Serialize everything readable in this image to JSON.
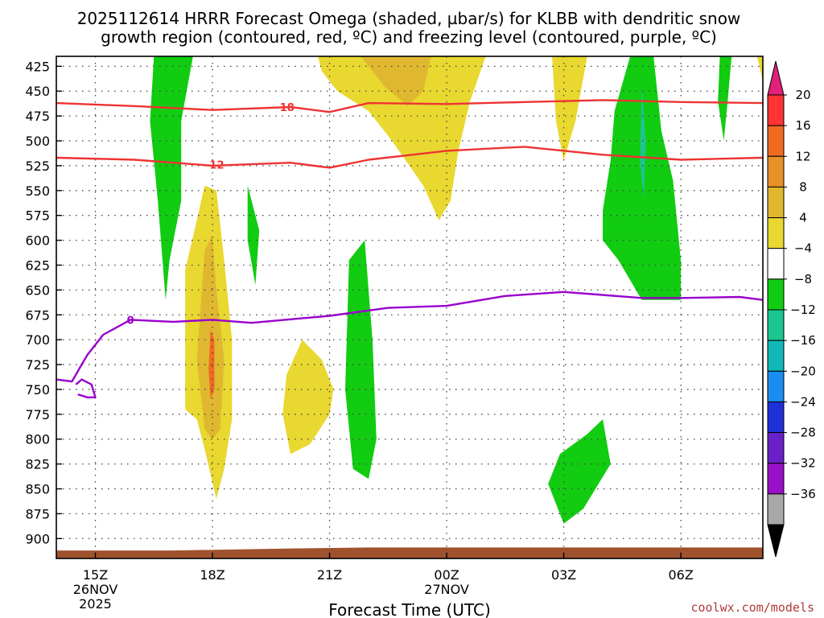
{
  "title_line1": "2025112614 HRRR Forecast Omega (shaded, µbar/s) for KLBB with dendritic snow",
  "title_line2": "growth region (contoured, red, ºC) and freezing level (contoured, purple, ºC)",
  "x_axis_label": "Forecast Time (UTC)",
  "credit": "coolwx.com/models",
  "colors": {
    "red_contour": "#ee3333",
    "purple_contour": "#9900cc",
    "terrain": "#a0522d"
  },
  "chart_data": {
    "type": "heatmap",
    "x_unit": "forecast hour from 14Z 26NOV2025",
    "xlim": [
      0,
      18.1
    ],
    "ylim_hpa": [
      415,
      920
    ],
    "y_ticks": [
      "425",
      "450",
      "475",
      "500",
      "525",
      "550",
      "575",
      "600",
      "625",
      "650",
      "675",
      "700",
      "725",
      "750",
      "775",
      "800",
      "825",
      "850",
      "875",
      "900"
    ],
    "x_ticks": [
      {
        "hour": 1,
        "label": "15Z",
        "sub1": "26NOV",
        "sub2": "2025"
      },
      {
        "hour": 4,
        "label": "18Z",
        "sub1": "",
        "sub2": ""
      },
      {
        "hour": 7,
        "label": "21Z",
        "sub1": "",
        "sub2": ""
      },
      {
        "hour": 10,
        "label": "00Z",
        "sub1": "27NOV",
        "sub2": ""
      },
      {
        "hour": 13,
        "label": "03Z",
        "sub1": "",
        "sub2": ""
      },
      {
        "hour": 16,
        "label": "06Z",
        "sub1": "",
        "sub2": ""
      }
    ],
    "colorbar": {
      "levels": [
        "20",
        "16",
        "12",
        "8",
        "4",
        "−4",
        "−8",
        "−12",
        "−16",
        "−20",
        "−24",
        "−28",
        "−32",
        "−36"
      ],
      "colors": [
        "#ff3333",
        "#f06a22",
        "#e89028",
        "#e0b830",
        "#e8d830",
        "#ffffff",
        "#11cc11",
        "#1dc590",
        "#12b8b8",
        "#1a8ef0",
        "#2030d8",
        "#6a20c8",
        "#9a10c8",
        "#a8a8a8"
      ],
      "top_arrow": "#e0207a",
      "bottom_arrow": "#000000"
    },
    "omega_regions": [
      {
        "value": -6,
        "color": "#11cc11",
        "points": [
          [
            2.5,
            415
          ],
          [
            3.5,
            415
          ],
          [
            3.2,
            480
          ],
          [
            3.2,
            560
          ],
          [
            2.9,
            620
          ],
          [
            2.8,
            660
          ],
          [
            2.6,
            560
          ],
          [
            2.4,
            480
          ]
        ]
      },
      {
        "value": -6,
        "color": "#11cc11",
        "points": [
          [
            4.9,
            545
          ],
          [
            5.2,
            590
          ],
          [
            5.1,
            645
          ],
          [
            4.9,
            600
          ]
        ]
      },
      {
        "value": -6,
        "color": "#11cc11",
        "points": [
          [
            7.5,
            620
          ],
          [
            7.9,
            600
          ],
          [
            8.1,
            700
          ],
          [
            8.2,
            800
          ],
          [
            8.0,
            840
          ],
          [
            7.6,
            830
          ],
          [
            7.4,
            750
          ]
        ]
      },
      {
        "value": -6,
        "color": "#11cc11",
        "points": [
          [
            12.6,
            845
          ],
          [
            12.9,
            815
          ],
          [
            13.6,
            795
          ],
          [
            14.0,
            780
          ],
          [
            14.2,
            825
          ],
          [
            13.5,
            870
          ],
          [
            13.0,
            885
          ]
        ]
      },
      {
        "value": -6,
        "color": "#11cc11",
        "points": [
          [
            14.7,
            415
          ],
          [
            15.3,
            415
          ],
          [
            15.5,
            490
          ],
          [
            15.8,
            540
          ],
          [
            16.0,
            620
          ],
          [
            16.0,
            660
          ],
          [
            15.0,
            660
          ],
          [
            14.4,
            620
          ],
          [
            14.0,
            600
          ],
          [
            14.0,
            570
          ],
          [
            14.2,
            520
          ],
          [
            14.3,
            470
          ]
        ]
      },
      {
        "value": -10,
        "color": "#1dc590",
        "points": [
          [
            15.0,
            445
          ],
          [
            15.1,
            500
          ],
          [
            15.05,
            560
          ],
          [
            14.95,
            520
          ]
        ]
      },
      {
        "value": -6,
        "color": "#11cc11",
        "points": [
          [
            17.0,
            415
          ],
          [
            17.3,
            415
          ],
          [
            17.2,
            460
          ],
          [
            17.1,
            500
          ],
          [
            16.95,
            460
          ]
        ]
      },
      {
        "value": 6,
        "color": "#e8d830",
        "points": [
          [
            3.3,
            630
          ],
          [
            3.6,
            580
          ],
          [
            3.8,
            545
          ],
          [
            4.1,
            550
          ],
          [
            4.3,
            620
          ],
          [
            4.5,
            700
          ],
          [
            4.5,
            780
          ],
          [
            4.3,
            830
          ],
          [
            4.1,
            860
          ],
          [
            3.8,
            810
          ],
          [
            3.6,
            780
          ],
          [
            3.3,
            770
          ]
        ]
      },
      {
        "value": 10,
        "color": "#e0b830",
        "points": [
          [
            3.8,
            610
          ],
          [
            4.0,
            595
          ],
          [
            4.1,
            650
          ],
          [
            4.3,
            720
          ],
          [
            4.2,
            790
          ],
          [
            4.0,
            800
          ],
          [
            3.8,
            790
          ],
          [
            3.6,
            720
          ]
        ]
      },
      {
        "value": 14,
        "color": "#f06a22",
        "points": [
          [
            3.95,
            690
          ],
          [
            4.05,
            700
          ],
          [
            4.05,
            750
          ],
          [
            3.95,
            760
          ],
          [
            3.9,
            730
          ]
        ]
      },
      {
        "value": 6,
        "color": "#e8d830",
        "points": [
          [
            5.9,
            735
          ],
          [
            6.3,
            700
          ],
          [
            6.8,
            720
          ],
          [
            7.1,
            750
          ],
          [
            7.0,
            775
          ],
          [
            6.5,
            805
          ],
          [
            6.0,
            815
          ],
          [
            5.8,
            775
          ]
        ]
      },
      {
        "value": 6,
        "color": "#e8d830",
        "points": [
          [
            6.7,
            415
          ],
          [
            11.0,
            415
          ],
          [
            10.6,
            460
          ],
          [
            10.3,
            510
          ],
          [
            10.1,
            560
          ],
          [
            9.8,
            580
          ],
          [
            9.4,
            545
          ],
          [
            8.6,
            500
          ],
          [
            8.0,
            470
          ],
          [
            7.2,
            450
          ],
          [
            6.8,
            430
          ]
        ]
      },
      {
        "value": 10,
        "color": "#e0b830",
        "points": [
          [
            7.8,
            415
          ],
          [
            9.6,
            415
          ],
          [
            9.4,
            450
          ],
          [
            9.0,
            465
          ],
          [
            8.4,
            445
          ]
        ]
      },
      {
        "value": 6,
        "color": "#e8d830",
        "points": [
          [
            12.7,
            415
          ],
          [
            13.6,
            415
          ],
          [
            13.3,
            480
          ],
          [
            13.0,
            520
          ],
          [
            12.8,
            480
          ]
        ]
      },
      {
        "value": 6,
        "color": "#e8d830",
        "points": [
          [
            17.95,
            415
          ],
          [
            18.1,
            415
          ],
          [
            18.1,
            440
          ]
        ]
      }
    ],
    "red_contours": [
      {
        "label": "−18",
        "label_at": [
          5.8,
          466
        ],
        "points": [
          [
            0,
            462
          ],
          [
            2.0,
            465
          ],
          [
            4.0,
            469
          ],
          [
            6.0,
            466
          ],
          [
            7.0,
            471
          ],
          [
            8.0,
            462
          ],
          [
            10.0,
            463
          ],
          [
            12.0,
            461
          ],
          [
            14.0,
            459
          ],
          [
            16.0,
            461
          ],
          [
            18.1,
            462
          ]
        ]
      },
      {
        "label": "−12",
        "label_at": [
          4.0,
          524
        ],
        "points": [
          [
            0,
            517
          ],
          [
            2.0,
            519
          ],
          [
            4.0,
            525
          ],
          [
            6.0,
            522
          ],
          [
            7.0,
            527
          ],
          [
            8.0,
            519
          ],
          [
            10.0,
            510
          ],
          [
            12.0,
            506
          ],
          [
            14.0,
            514
          ],
          [
            16.0,
            519
          ],
          [
            18.1,
            517
          ]
        ]
      }
    ],
    "purple_contours": [
      {
        "label": "0",
        "label_at": [
          1.9,
          680
        ],
        "points": [
          [
            0,
            740
          ],
          [
            0.4,
            742
          ],
          [
            0.65,
            725
          ],
          [
            0.8,
            715
          ],
          [
            1.2,
            695
          ],
          [
            1.9,
            680
          ],
          [
            3.0,
            682
          ],
          [
            4.0,
            680
          ],
          [
            5.0,
            683
          ],
          [
            7.0,
            676
          ],
          [
            8.5,
            668
          ],
          [
            10.0,
            666
          ],
          [
            11.5,
            656
          ],
          [
            13.0,
            652
          ],
          [
            15.0,
            658
          ],
          [
            16.0,
            658
          ],
          [
            17.5,
            657
          ],
          [
            18.1,
            660
          ]
        ]
      },
      {
        "label": "",
        "label_at": null,
        "points": [
          [
            0.5,
            745
          ],
          [
            0.65,
            740
          ],
          [
            0.9,
            745
          ],
          [
            1.0,
            758
          ],
          [
            0.8,
            758
          ],
          [
            0.55,
            755
          ]
        ]
      }
    ],
    "terrain_top_hpa": [
      [
        0,
        912
      ],
      [
        3,
        912
      ],
      [
        6,
        910
      ],
      [
        8,
        909
      ],
      [
        18.1,
        909
      ]
    ]
  }
}
